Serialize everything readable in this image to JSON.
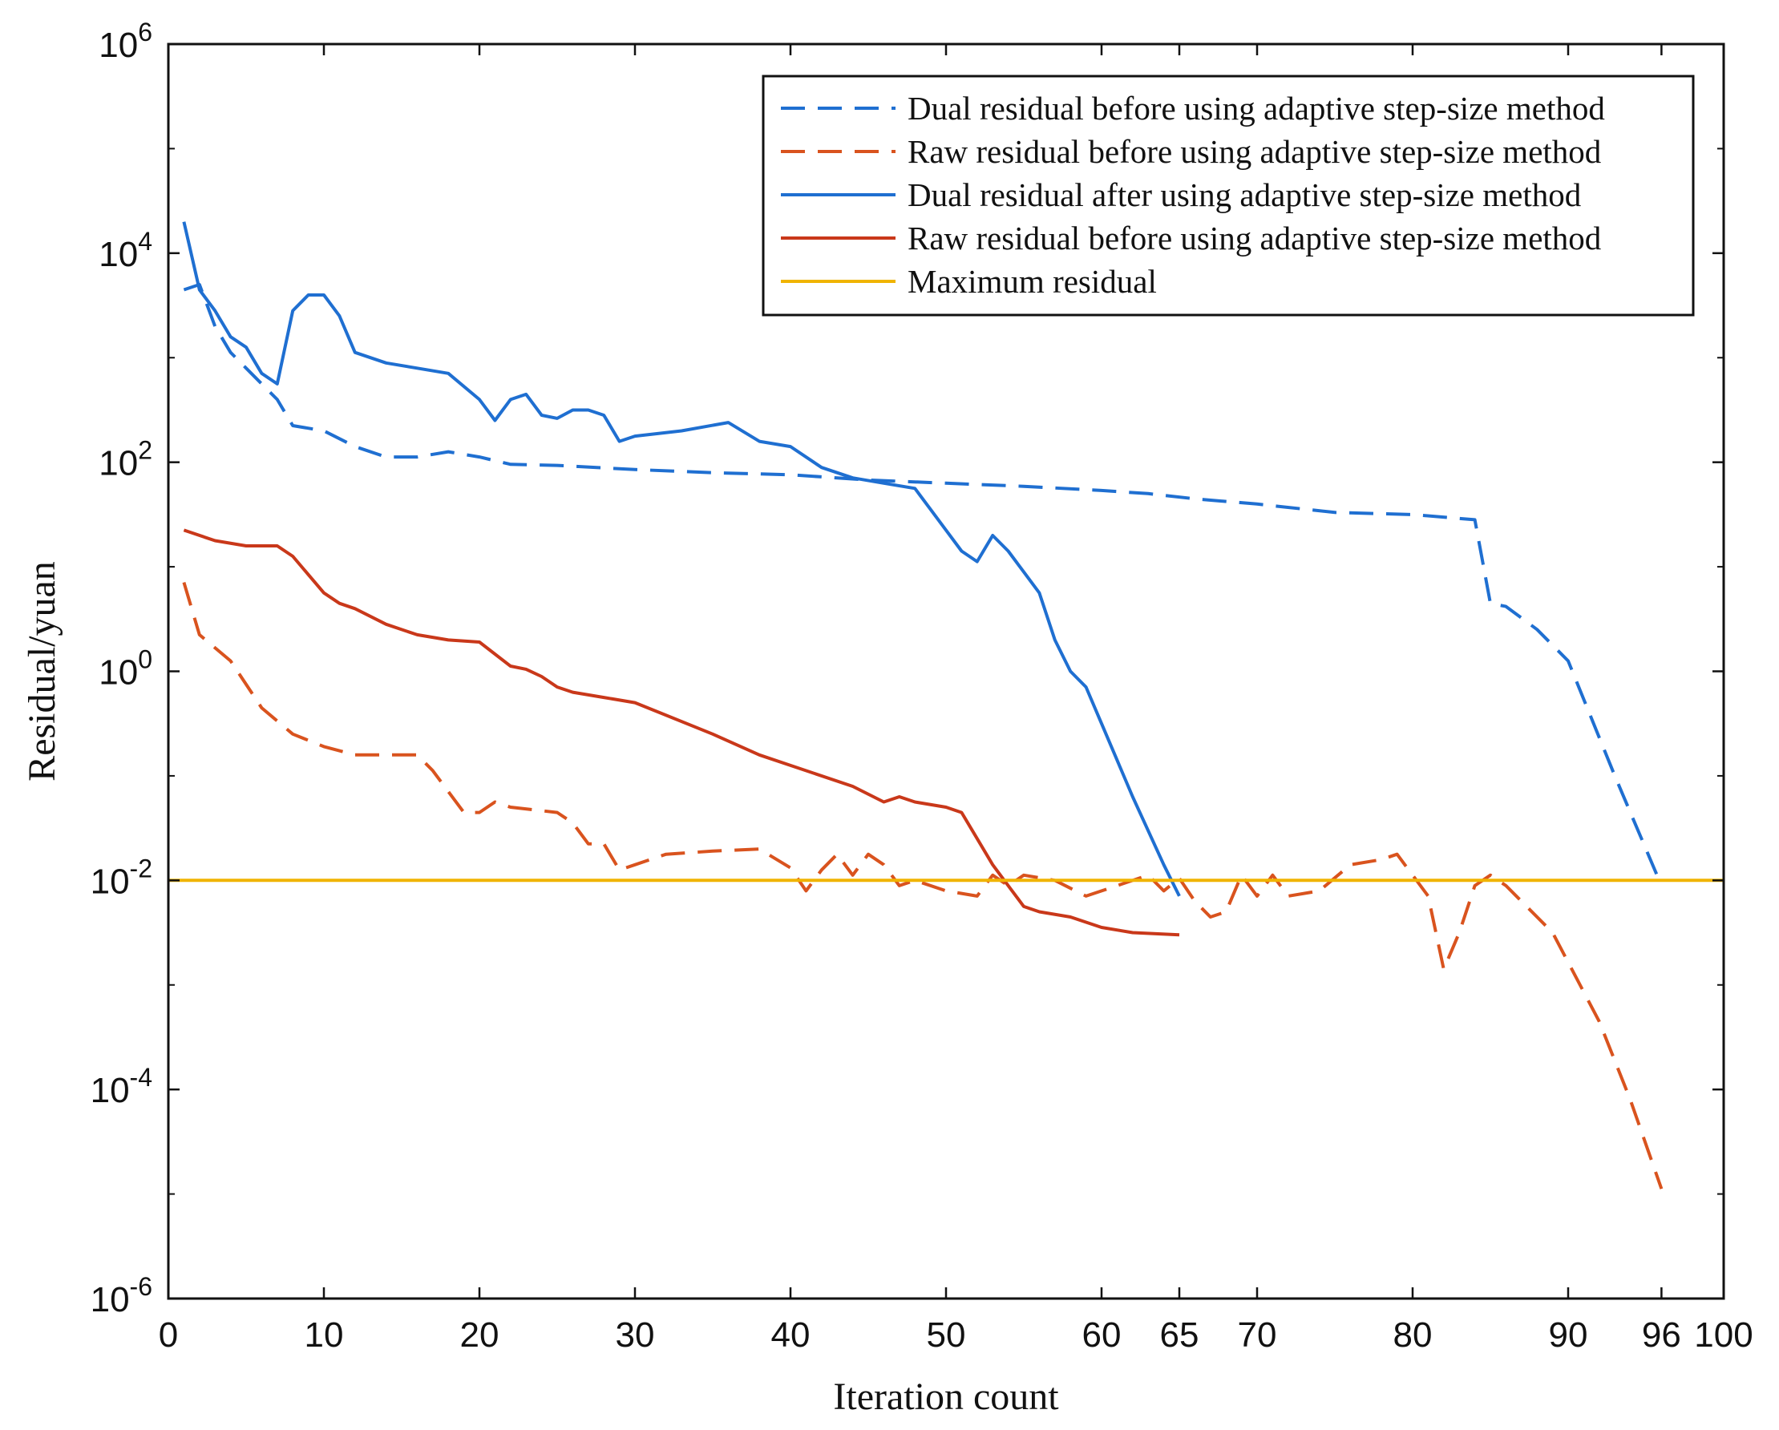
{
  "chart_data": {
    "type": "line",
    "title": "",
    "xlabel": "Iteration count",
    "ylabel": "Residual/yuan",
    "xlim": [
      0,
      100
    ],
    "ylim_log10": [
      -6,
      6
    ],
    "yscale": "log",
    "grid": false,
    "legend_position": "top-right",
    "x_ticks": [
      0,
      10,
      20,
      30,
      40,
      50,
      60,
      65,
      70,
      80,
      90,
      96,
      100
    ],
    "x_tick_labels": [
      "0",
      "10",
      "20",
      "30",
      "40",
      "50",
      "60",
      "65",
      "70",
      "80",
      "90",
      "96",
      "100"
    ],
    "y_ticks_exponent": [
      -6,
      -4,
      -2,
      0,
      2,
      4,
      6
    ],
    "y_tick_base": "10",
    "y_tick_exponent_labels": [
      "-6",
      "-4",
      "-2",
      "0",
      "2",
      "4",
      "6"
    ],
    "series": [
      {
        "name": "Dual residual before using adaptive step-size method",
        "color": "#1f6fd1",
        "style": "dashed",
        "x": [
          1,
          2,
          3,
          4,
          5,
          6,
          7,
          8,
          10,
          12,
          14,
          16,
          18,
          20,
          22,
          25,
          30,
          35,
          40,
          45,
          50,
          55,
          60,
          63,
          66,
          70,
          75,
          80,
          84,
          85,
          86,
          88,
          90,
          93,
          96
        ],
        "log10_y": [
          3.65,
          3.7,
          3.3,
          3.05,
          2.9,
          2.75,
          2.6,
          2.35,
          2.3,
          2.15,
          2.05,
          2.05,
          2.1,
          2.05,
          1.98,
          1.97,
          1.93,
          1.9,
          1.88,
          1.83,
          1.8,
          1.77,
          1.73,
          1.7,
          1.65,
          1.6,
          1.52,
          1.5,
          1.45,
          0.65,
          0.62,
          0.4,
          0.1,
          -1.0,
          -2.05
        ]
      },
      {
        "name": "Raw residual before using adaptive step-size method",
        "color": "#d9531e",
        "style": "dashed",
        "x": [
          1,
          2,
          4,
          6,
          8,
          10,
          12,
          16,
          17,
          19,
          20,
          21,
          22,
          25,
          26,
          27,
          28,
          29,
          30,
          32,
          35,
          38,
          40,
          41,
          42,
          43,
          44,
          45,
          46,
          47,
          48,
          50,
          52,
          53,
          54,
          55,
          57,
          59,
          61,
          63,
          64,
          65,
          66,
          67,
          68,
          69,
          70,
          71,
          72,
          74,
          76,
          78,
          79,
          80,
          81,
          82,
          83,
          84,
          85,
          86,
          87,
          89,
          92,
          94,
          96
        ],
        "log10_y": [
          0.85,
          0.35,
          0.1,
          -0.35,
          -0.6,
          -0.72,
          -0.8,
          -0.8,
          -0.95,
          -1.35,
          -1.35,
          -1.25,
          -1.3,
          -1.35,
          -1.45,
          -1.65,
          -1.65,
          -1.9,
          -1.85,
          -1.75,
          -1.72,
          -1.7,
          -1.88,
          -2.1,
          -1.9,
          -1.75,
          -1.95,
          -1.75,
          -1.85,
          -2.05,
          -2.0,
          -2.1,
          -2.15,
          -1.95,
          -2.05,
          -1.95,
          -2.0,
          -2.15,
          -2.05,
          -1.95,
          -2.1,
          -1.98,
          -2.2,
          -2.35,
          -2.3,
          -1.95,
          -2.15,
          -1.95,
          -2.15,
          -2.1,
          -1.85,
          -1.8,
          -1.75,
          -1.95,
          -2.15,
          -2.85,
          -2.5,
          -2.05,
          -1.95,
          -2.05,
          -2.2,
          -2.5,
          -3.35,
          -4.1,
          -4.95
        ]
      },
      {
        "name": "Dual residual after using adaptive step-size method",
        "color": "#1f6fd1",
        "style": "solid",
        "x": [
          1,
          2,
          3,
          4,
          5,
          6,
          7,
          8,
          9,
          10,
          11,
          12,
          14,
          16,
          18,
          20,
          21,
          22,
          23,
          24,
          25,
          26,
          27,
          28,
          29,
          30,
          33,
          36,
          38,
          40,
          42,
          44,
          46,
          48,
          50,
          51,
          52,
          53,
          54,
          55,
          56,
          57,
          58,
          59,
          60,
          62,
          64,
          65
        ],
        "log10_y": [
          4.3,
          3.65,
          3.45,
          3.2,
          3.1,
          2.85,
          2.75,
          3.45,
          3.6,
          3.6,
          3.4,
          3.05,
          2.95,
          2.9,
          2.85,
          2.6,
          2.4,
          2.6,
          2.65,
          2.45,
          2.42,
          2.5,
          2.5,
          2.45,
          2.2,
          2.25,
          2.3,
          2.38,
          2.2,
          2.15,
          1.95,
          1.85,
          1.8,
          1.75,
          1.35,
          1.15,
          1.05,
          1.3,
          1.15,
          0.95,
          0.75,
          0.3,
          0.0,
          -0.15,
          -0.5,
          -1.2,
          -1.85,
          -2.15
        ]
      },
      {
        "name": "Raw residual before using adaptive step-size method",
        "color": "#c9381a",
        "style": "solid",
        "x": [
          1,
          3,
          5,
          7,
          8,
          10,
          11,
          12,
          14,
          16,
          18,
          20,
          22,
          23,
          24,
          25,
          26,
          28,
          30,
          35,
          38,
          40,
          44,
          46,
          47,
          48,
          50,
          51,
          52,
          53,
          54,
          55,
          56,
          58,
          60,
          62,
          65
        ],
        "log10_y": [
          1.35,
          1.25,
          1.2,
          1.2,
          1.1,
          0.75,
          0.65,
          0.6,
          0.45,
          0.35,
          0.3,
          0.28,
          0.05,
          0.02,
          -0.05,
          -0.15,
          -0.2,
          -0.25,
          -0.3,
          -0.6,
          -0.8,
          -0.9,
          -1.1,
          -1.25,
          -1.2,
          -1.25,
          -1.3,
          -1.35,
          -1.6,
          -1.85,
          -2.05,
          -2.25,
          -2.3,
          -2.35,
          -2.45,
          -2.5,
          -2.52
        ]
      },
      {
        "name": "Maximum residual",
        "color": "#f0b400",
        "style": "solid",
        "x": [
          0,
          100
        ],
        "log10_y": [
          -2,
          -2
        ]
      }
    ]
  }
}
